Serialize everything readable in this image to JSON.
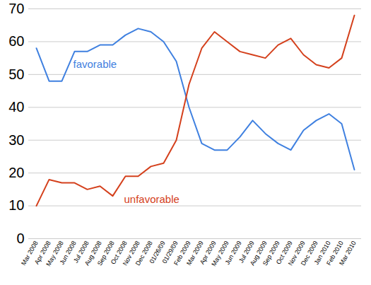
{
  "chart_data": {
    "type": "line",
    "categories": [
      "Mar 2008",
      "Apr 2008",
      "May 2008",
      "Jun 2008",
      "Jul 2008",
      "Aug 2008",
      "Sep 2008",
      "Oct 2008",
      "Nov 2008",
      "Dec 2008",
      "01/26/09",
      "01/29/09",
      "Feb 2009",
      "Mar 2009",
      "Apr 2009",
      "May 2009",
      "Jun 2009",
      "Jul 2009",
      "Aug 2009",
      "Sep 2009",
      "Oct 2009",
      "Nov 2009",
      "Dec 2009",
      "Jan 2010",
      "Feb 2010",
      "Mar 2010"
    ],
    "series": [
      {
        "name": "favorable",
        "color": "#3f80e0",
        "values": [
          58,
          48,
          48,
          57,
          57,
          59,
          59,
          62,
          64,
          63,
          60,
          54,
          40,
          29,
          27,
          27,
          31,
          36,
          32,
          29,
          27,
          33,
          36,
          38,
          35,
          21
        ]
      },
      {
        "name": "unfavorable",
        "color": "#d4401c",
        "values": [
          10,
          18,
          17,
          17,
          15,
          16,
          13,
          19,
          19,
          22,
          23,
          30,
          47,
          58,
          63,
          60,
          57,
          56,
          55,
          59,
          61,
          56,
          53,
          52,
          55,
          68
        ]
      }
    ],
    "ylim": [
      0,
      70
    ],
    "yticks": [
      0,
      10,
      20,
      30,
      40,
      50,
      60,
      70
    ],
    "grid": true
  }
}
